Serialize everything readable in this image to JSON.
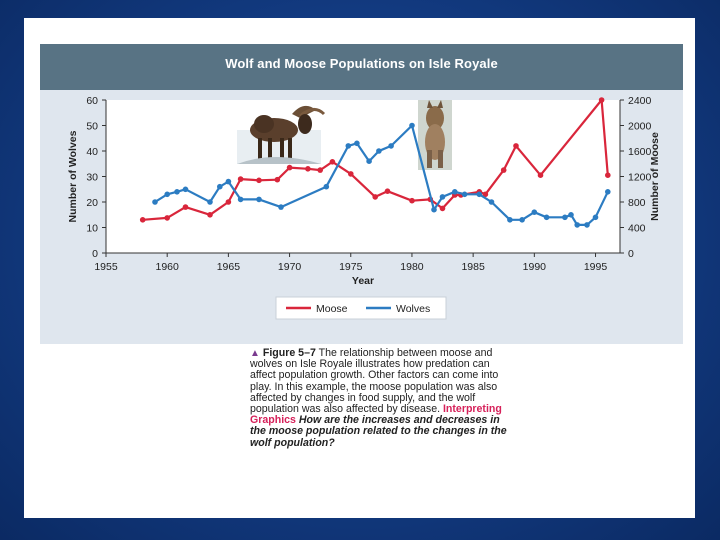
{
  "chart_data": {
    "type": "line",
    "title": "Wolf and  Moose Populations on Isle Royale",
    "xlabel": "Year",
    "ylabel_left": "Number of Wolves",
    "ylabel_right": "Number of Moose",
    "xlim": [
      1955,
      1997
    ],
    "ylim_left": [
      0,
      60
    ],
    "ylim_right": [
      0,
      2400
    ],
    "x_ticks": [
      1955,
      1960,
      1965,
      1970,
      1975,
      1980,
      1985,
      1990,
      1995
    ],
    "y_ticks_left": [
      0,
      10,
      20,
      30,
      40,
      50,
      60
    ],
    "y_ticks_right": [
      0,
      400,
      800,
      1200,
      1600,
      2000,
      2400
    ],
    "grid": false,
    "legend_position": "bottom-center",
    "series": [
      {
        "name": "Moose",
        "axis": "right",
        "color": "#d9263b",
        "x": [
          1958,
          1960,
          1961.5,
          1963.5,
          1965,
          1966,
          1967.5,
          1969,
          1970,
          1971.5,
          1972.5,
          1973.5,
          1975,
          1977,
          1978,
          1980,
          1981.5,
          1982.5,
          1983.5,
          1984,
          1985.5,
          1986,
          1987.5,
          1988.5,
          1990.5,
          1995.5,
          1996
        ],
        "values": [
          520,
          550,
          720,
          600,
          800,
          1160,
          1140,
          1150,
          1340,
          1320,
          1300,
          1430,
          1240,
          880,
          970,
          820,
          840,
          700,
          910,
          910,
          960,
          920,
          1300,
          1680,
          1220,
          2400,
          1220
        ]
      },
      {
        "name": "Wolves",
        "axis": "left",
        "color": "#2c7cc2",
        "x": [
          1959,
          1960,
          1960.8,
          1961.5,
          1963.5,
          1964.3,
          1965,
          1966,
          1967.5,
          1969.3,
          1973,
          1974.8,
          1975.5,
          1976.5,
          1977.3,
          1978.3,
          1980,
          1981.8,
          1982.5,
          1983.5,
          1984.3,
          1985.5,
          1986.5,
          1988,
          1989,
          1990,
          1991,
          1992.5,
          1993,
          1993.5,
          1994.3,
          1995,
          1996
        ],
        "values": [
          20,
          23,
          24,
          25,
          20,
          26,
          28,
          21,
          21,
          18,
          26,
          42,
          43,
          36,
          40,
          42,
          50,
          17,
          22,
          24,
          23,
          23,
          20,
          13,
          13,
          16,
          14,
          14,
          15,
          11,
          11,
          14,
          24
        ]
      }
    ]
  },
  "caption": {
    "figure_label": "Figure 5–7",
    "text": "The relationship between moose and wolves on Isle Royale illustrates how predation can affect population growth. Other factors can come into play. In this example, the moose population was also affected by changes in food supply, and the wolf population was also affected by disease.",
    "interpreting_label": "Interpreting Graphics",
    "question": "How are the increases and decreases in the moose population related to the changes in the wolf population?"
  },
  "images": {
    "moose": "moose-photo",
    "wolf": "wolf-photo"
  }
}
